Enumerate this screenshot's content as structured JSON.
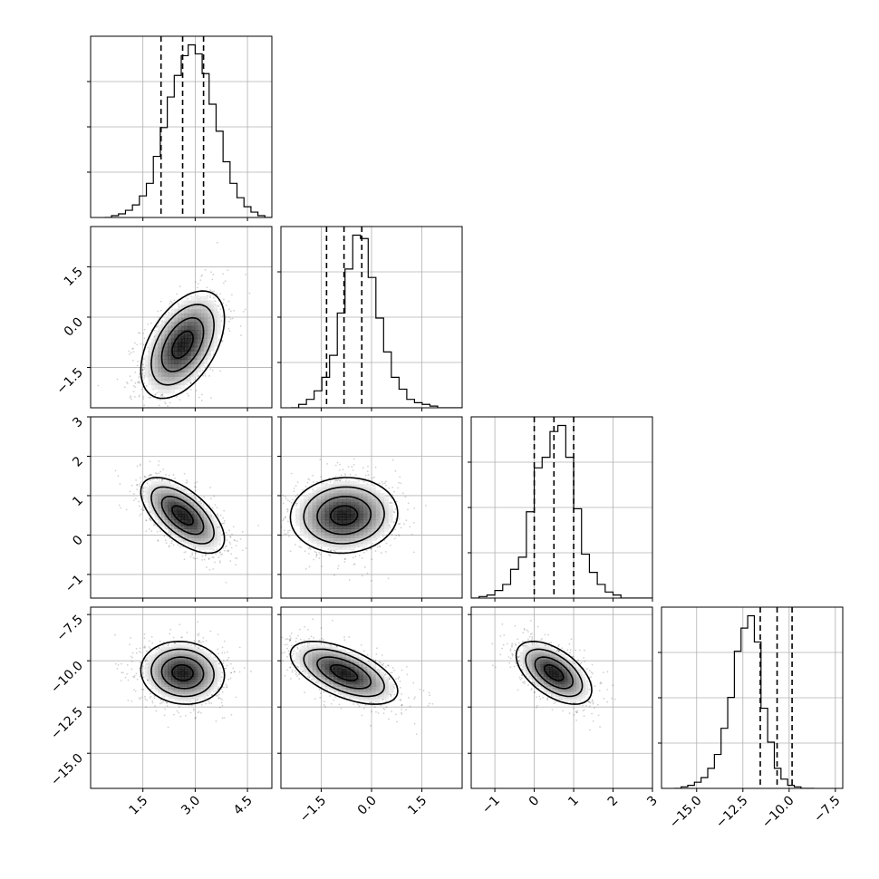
{
  "chart_data": {
    "type": "corner",
    "n_params": 4,
    "param_ranges": [
      [
        0,
        5.2
      ],
      [
        -2.7,
        2.7
      ],
      [
        -1.6,
        3.0
      ],
      [
        -16.9,
        -7.1
      ]
    ],
    "ticks": [
      [
        1.5,
        3.0,
        4.5
      ],
      [
        -1.5,
        0.0,
        1.5
      ],
      [
        -1,
        0,
        1,
        2,
        3
      ],
      [
        -15.0,
        -12.5,
        -10.0,
        -7.5
      ]
    ],
    "tick_labels": [
      [
        "1.5",
        "3.0",
        "4.5"
      ],
      [
        "−1.5",
        "0.0",
        "1.5"
      ],
      [
        "−1",
        "0",
        "1",
        "2",
        "3"
      ],
      [
        "−15.0",
        "−12.5",
        "−10.0",
        "−7.5"
      ]
    ],
    "quantiles": [
      [
        2.02,
        2.64,
        3.24
      ],
      [
        -1.34,
        -0.82,
        -0.29
      ],
      [
        0.0,
        0.5,
        1.0
      ],
      [
        -11.56,
        -10.65,
        -9.84
      ]
    ],
    "histograms": [
      {
        "edges_start": 0.4,
        "bin_width": 0.2,
        "counts": [
          0,
          1,
          2,
          4,
          7,
          12,
          19,
          34,
          50,
          67,
          79,
          90,
          96,
          91,
          80,
          63,
          48,
          31,
          19,
          11,
          6,
          3,
          1,
          0
        ]
      },
      {
        "edges_start": -2.4,
        "bin_width": 0.23,
        "counts": [
          0,
          2,
          5,
          10,
          18,
          31,
          56,
          82,
          102,
          100,
          77,
          53,
          33,
          18,
          11,
          5,
          3,
          2,
          1,
          0,
          0,
          0,
          0,
          0
        ]
      },
      {
        "edges_start": -1.6,
        "bin_width": 0.2,
        "counts": [
          0,
          1,
          2,
          5,
          9,
          19,
          27,
          57,
          86,
          93,
          110,
          114,
          93,
          59,
          29,
          17,
          9,
          4,
          2,
          0,
          0,
          0,
          0
        ]
      },
      {
        "edges_start": -16.2,
        "bin_width": 0.36,
        "counts": [
          0,
          1,
          2,
          4,
          7,
          13,
          22,
          39,
          59,
          89,
          104,
          112,
          95,
          52,
          30,
          13,
          6,
          2,
          1,
          0,
          0
        ]
      }
    ],
    "pairs": [
      {
        "x": 0,
        "y": 1,
        "mean": [
          2.64,
          -0.82
        ],
        "sigma": [
          0.6,
          0.8
        ],
        "rho": 0.48
      },
      {
        "x": 0,
        "y": 2,
        "mean": [
          2.64,
          0.5
        ],
        "sigma": [
          0.6,
          0.48
        ],
        "rho": -0.62
      },
      {
        "x": 1,
        "y": 2,
        "mean": [
          -0.82,
          0.5
        ],
        "sigma": [
          0.8,
          0.48
        ],
        "rho": 0.05
      },
      {
        "x": 0,
        "y": 3,
        "mean": [
          2.64,
          -10.65
        ],
        "sigma": [
          0.6,
          0.85
        ],
        "rho": -0.08
      },
      {
        "x": 1,
        "y": 3,
        "mean": [
          -0.82,
          -10.65
        ],
        "sigma": [
          0.8,
          0.85
        ],
        "rho": -0.58
      },
      {
        "x": 2,
        "y": 3,
        "mean": [
          0.5,
          -10.65
        ],
        "sigma": [
          0.48,
          0.85
        ],
        "rho": -0.55
      }
    ],
    "contour_levels_sigma": [
      0.5,
      1.0,
      1.5,
      2.0
    ],
    "grid": true,
    "title": "",
    "labels": []
  }
}
